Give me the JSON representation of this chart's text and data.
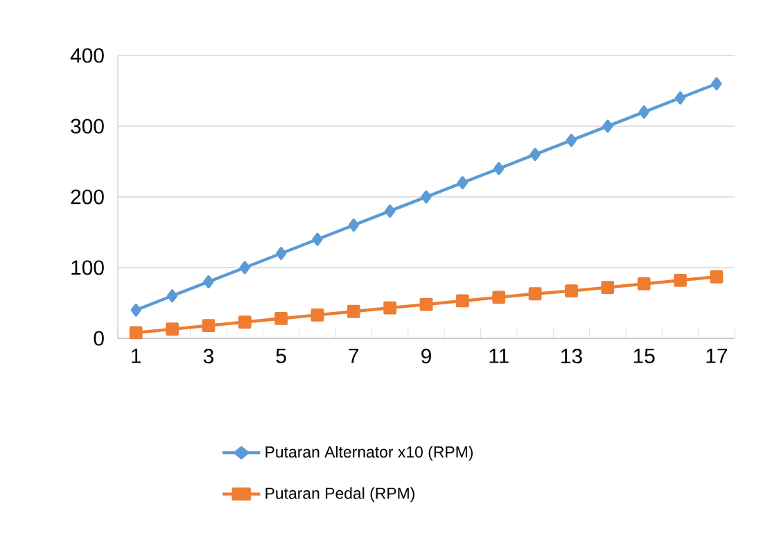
{
  "chart_data": {
    "type": "line",
    "categories": [
      "1",
      null,
      "3",
      null,
      "5",
      null,
      "7",
      null,
      "9",
      null,
      "11",
      null,
      "13",
      null,
      "15",
      null,
      "17"
    ],
    "series": [
      {
        "name": "Putaran Alternator x10 (RPM)",
        "color": "#5b9bd5",
        "marker": "diamond",
        "values": [
          40,
          60,
          80,
          100,
          120,
          140,
          160,
          180,
          200,
          220,
          240,
          260,
          280,
          300,
          320,
          340,
          360
        ]
      },
      {
        "name": "Putaran Pedal (RPM)",
        "color": "#ed7d31",
        "marker": "square",
        "values": [
          8,
          13,
          18,
          23,
          28,
          33,
          38,
          43,
          48,
          53,
          58,
          63,
          67,
          72,
          77,
          82,
          87
        ]
      }
    ],
    "ylim": [
      0,
      400
    ],
    "yticks": [
      0,
      100,
      200,
      300,
      400
    ],
    "grid": "y",
    "legend": "bottom",
    "line_style": "solid"
  }
}
